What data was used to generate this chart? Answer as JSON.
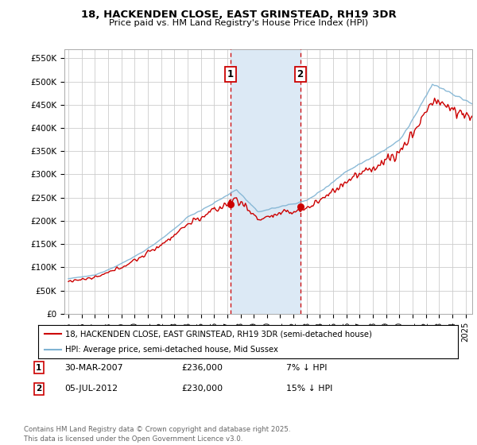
{
  "title": "18, HACKENDEN CLOSE, EAST GRINSTEAD, RH19 3DR",
  "subtitle": "Price paid vs. HM Land Registry's House Price Index (HPI)",
  "ylabel_ticks": [
    "£0",
    "£50K",
    "£100K",
    "£150K",
    "£200K",
    "£250K",
    "£300K",
    "£350K",
    "£400K",
    "£450K",
    "£500K",
    "£550K"
  ],
  "ytick_vals": [
    0,
    50000,
    100000,
    150000,
    200000,
    250000,
    300000,
    350000,
    400000,
    450000,
    500000,
    550000
  ],
  "ylim": [
    0,
    570000
  ],
  "xlim_start": 1994.7,
  "xlim_end": 2025.5,
  "purchase1_x": 2007.24,
  "purchase1_y": 236000,
  "purchase2_x": 2012.51,
  "purchase2_y": 230000,
  "shade_color": "#dce9f5",
  "line_house_color": "#cc0000",
  "line_hpi_color": "#7fb3d3",
  "grid_color": "#cccccc",
  "legend_entry1": "18, HACKENDEN CLOSE, EAST GRINSTEAD, RH19 3DR (semi-detached house)",
  "legend_entry2": "HPI: Average price, semi-detached house, Mid Sussex",
  "note1_date": "30-MAR-2007",
  "note1_price": "£236,000",
  "note1_hpi": "7% ↓ HPI",
  "note2_date": "05-JUL-2012",
  "note2_price": "£230,000",
  "note2_hpi": "15% ↓ HPI",
  "footer": "Contains HM Land Registry data © Crown copyright and database right 2025.\nThis data is licensed under the Open Government Licence v3.0."
}
